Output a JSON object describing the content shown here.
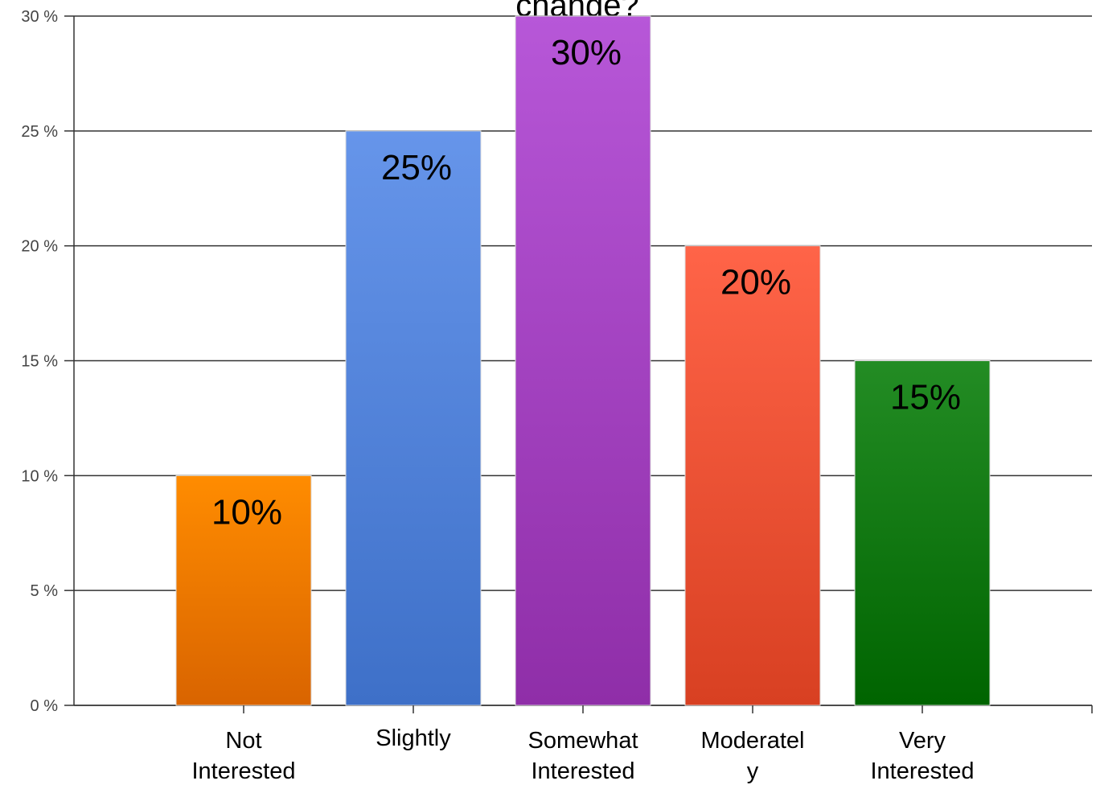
{
  "chart_data": {
    "type": "bar",
    "title": "change?",
    "categories": [
      [
        "Not",
        "Interested"
      ],
      [
        "Slightly"
      ],
      [
        "Somewhat",
        "Interested"
      ],
      [
        "Moderatel",
        "y"
      ],
      [
        "Very",
        "Interested"
      ]
    ],
    "values": [
      10,
      25,
      30,
      20,
      15
    ],
    "value_labels": [
      "10%",
      "25%",
      "30%",
      "20%",
      "15%"
    ],
    "colors": [
      [
        "#ff8c00",
        "#d96400"
      ],
      [
        "#6695ea",
        "#3e70c8"
      ],
      [
        "#b757d8",
        "#8f2ea8"
      ],
      [
        "#ff6448",
        "#d84022"
      ],
      [
        "#238c24",
        "#006400"
      ]
    ],
    "ylim": [
      0,
      30
    ],
    "yticks": [
      {
        "value": 0,
        "label": "0 %"
      },
      {
        "value": 5,
        "label": "5 %"
      },
      {
        "value": 10,
        "label": "10 %"
      },
      {
        "value": 15,
        "label": "15 %"
      },
      {
        "value": 20,
        "label": "20 %"
      },
      {
        "value": 25,
        "label": "25 %"
      },
      {
        "value": 30,
        "label": "30 %"
      }
    ],
    "grid": true
  }
}
